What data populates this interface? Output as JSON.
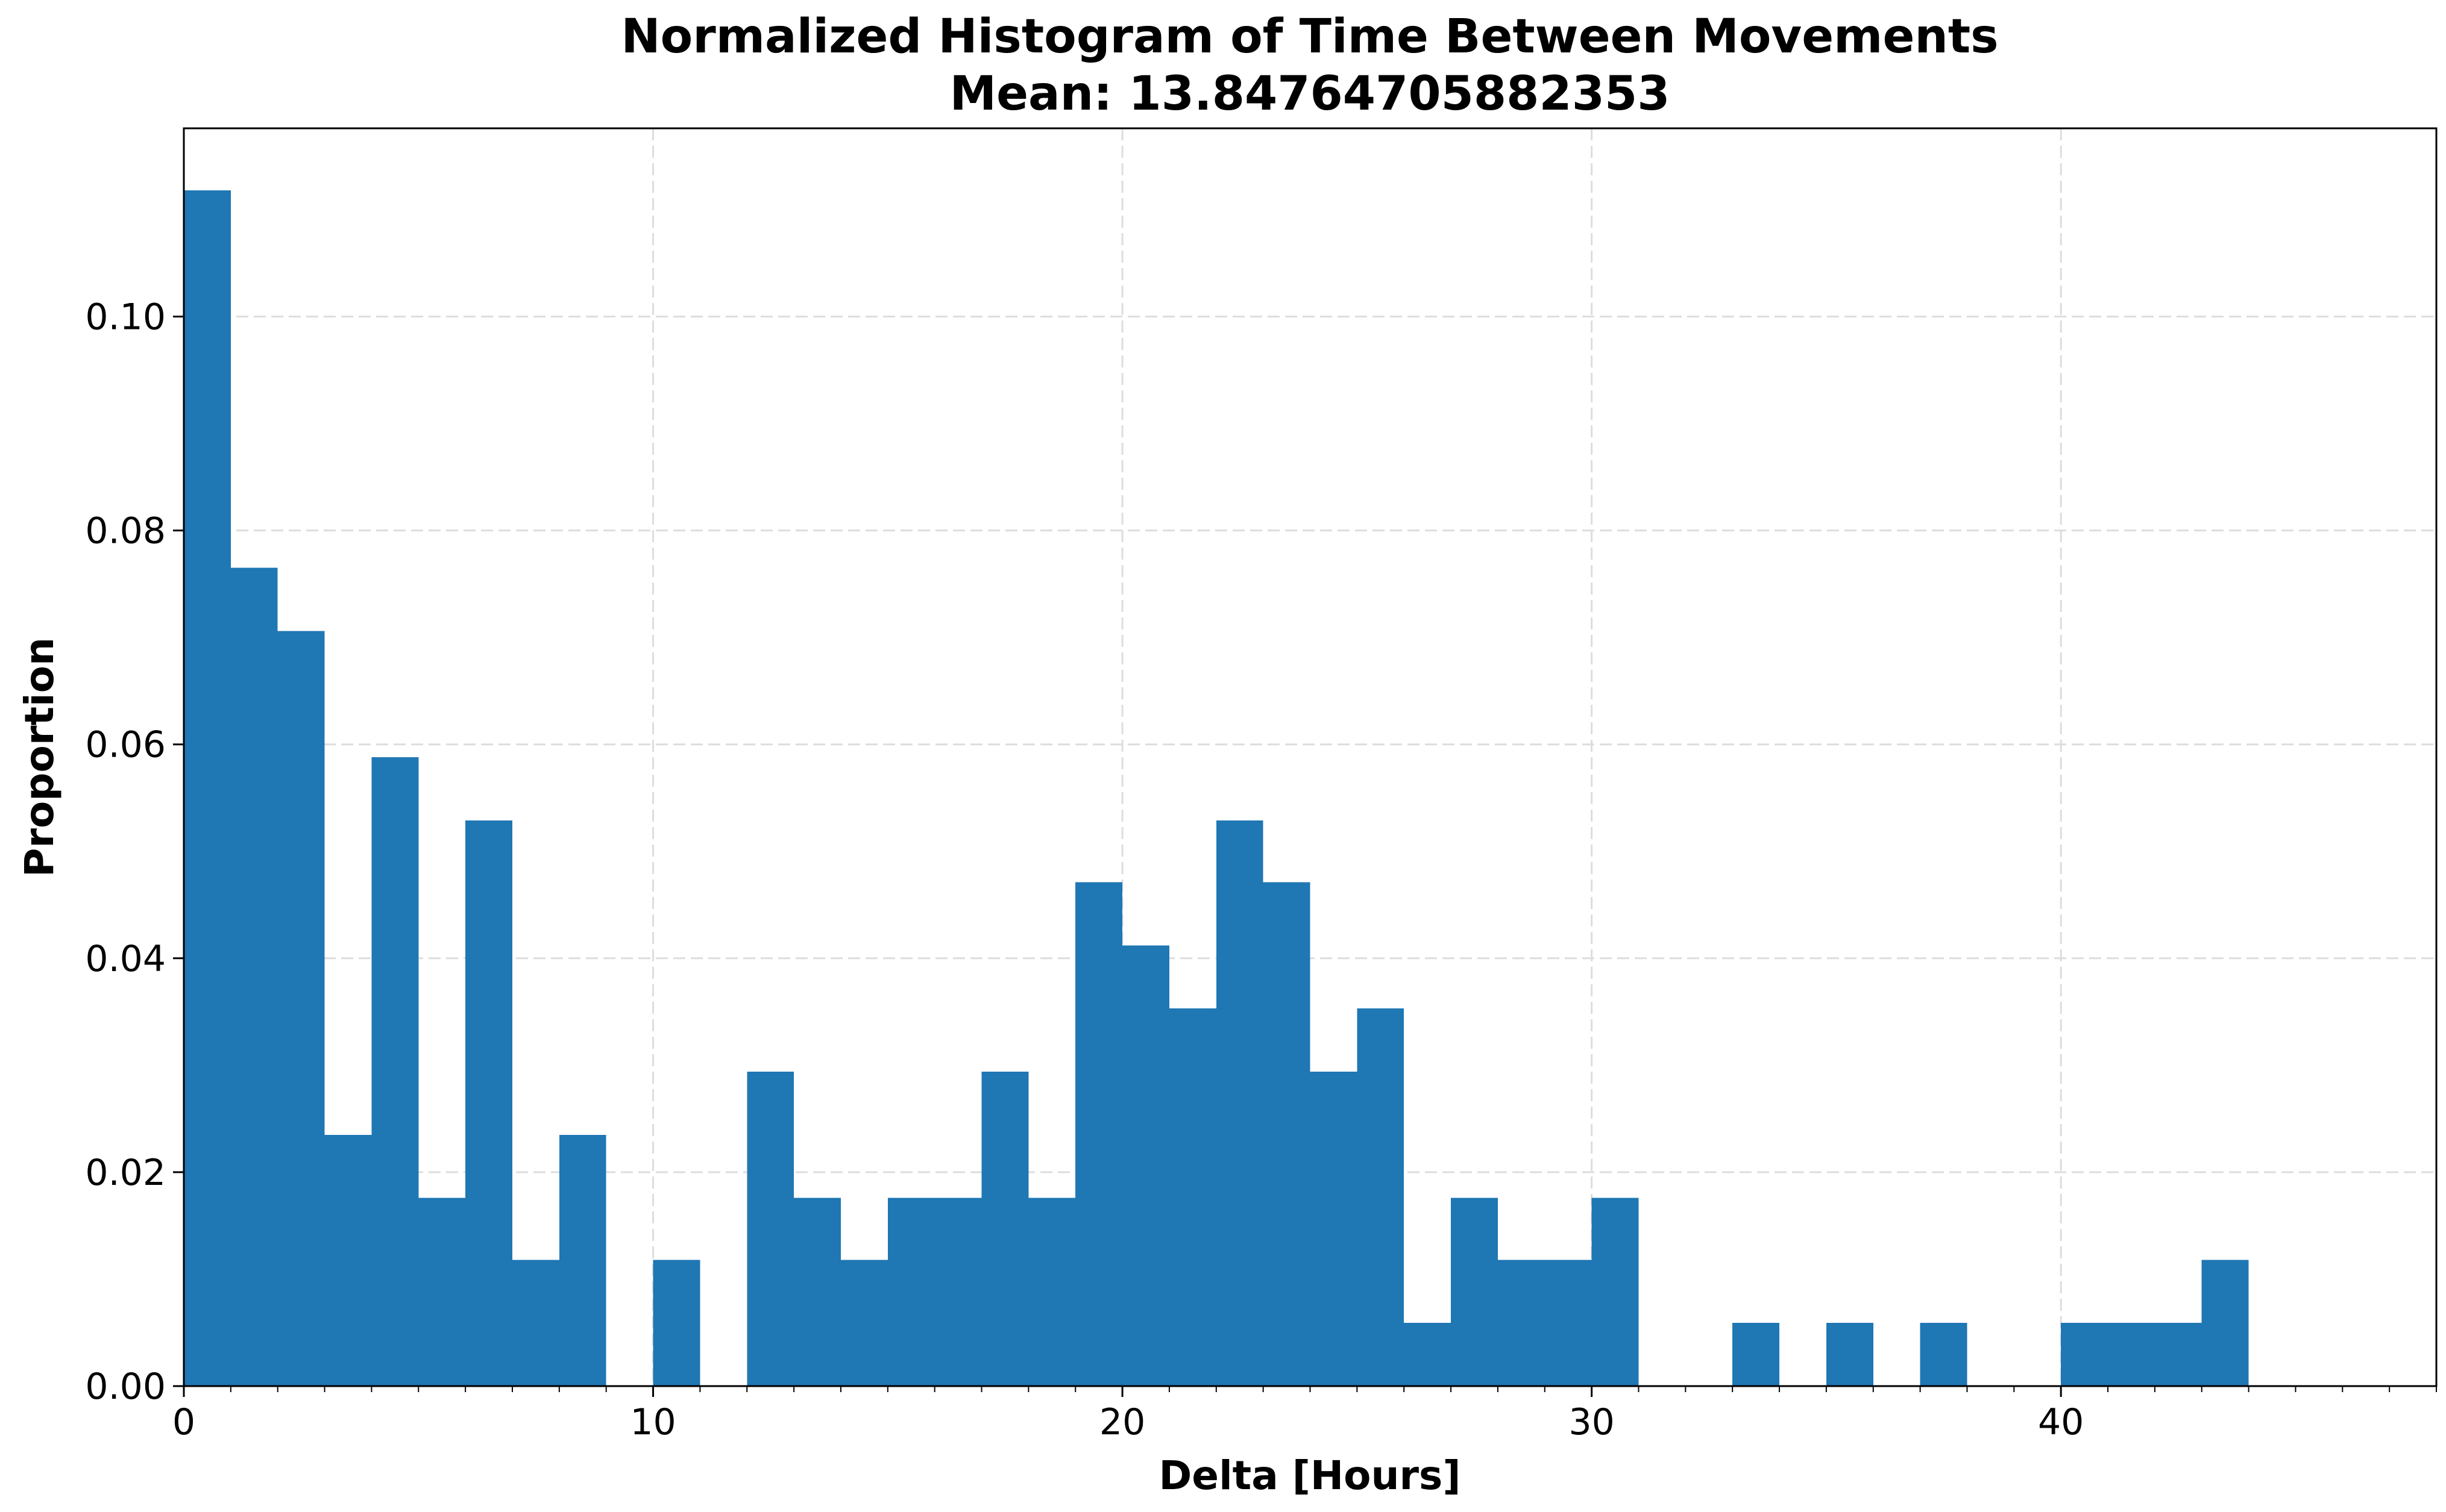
{
  "chart_data": {
    "type": "bar",
    "title": "Normalized Histogram of Time Between Movements",
    "subtitle": "Mean: 13.84764705882353",
    "xlabel": "Delta [Hours]",
    "ylabel": "Proportion",
    "xlim": [
      0,
      48
    ],
    "ylim": [
      0,
      0.1176
    ],
    "x_ticks": [
      0,
      10,
      20,
      30,
      40
    ],
    "x_tick_labels": [
      "0",
      "10",
      "20",
      "30",
      "40"
    ],
    "y_ticks": [
      0,
      0.02,
      0.04,
      0.06,
      0.08,
      0.1
    ],
    "y_tick_labels": [
      "0.00",
      "0.02",
      "0.04",
      "0.06",
      "0.08",
      "0.10"
    ],
    "x_minor_tick_step": 1,
    "grid": true,
    "bin_width": 1,
    "bin_starts": [
      0,
      1,
      2,
      3,
      4,
      5,
      6,
      7,
      8,
      9,
      10,
      11,
      12,
      13,
      14,
      15,
      16,
      17,
      18,
      19,
      20,
      21,
      22,
      23,
      24,
      25,
      26,
      27,
      28,
      29,
      30,
      31,
      32,
      33,
      34,
      35,
      36,
      37,
      38,
      39,
      40,
      41,
      42,
      43,
      44,
      45,
      46,
      47
    ],
    "values": [
      0.1118,
      0.0765,
      0.0706,
      0.0235,
      0.0588,
      0.0176,
      0.0529,
      0.0118,
      0.0235,
      0,
      0.0118,
      0,
      0.0294,
      0.0176,
      0.0118,
      0.0176,
      0.0176,
      0.0294,
      0.0176,
      0.0471,
      0.0412,
      0.0353,
      0.0529,
      0.0471,
      0.0294,
      0.0353,
      0.0059,
      0.0176,
      0.0118,
      0.0118,
      0.0176,
      0,
      0,
      0.0059,
      0,
      0.0059,
      0,
      0.0059,
      0,
      0,
      0.0059,
      0.0059,
      0.0059,
      0.0118,
      0,
      0,
      0,
      0
    ],
    "bar_color": "#1f77b4",
    "grid_color": "#dddddd"
  }
}
